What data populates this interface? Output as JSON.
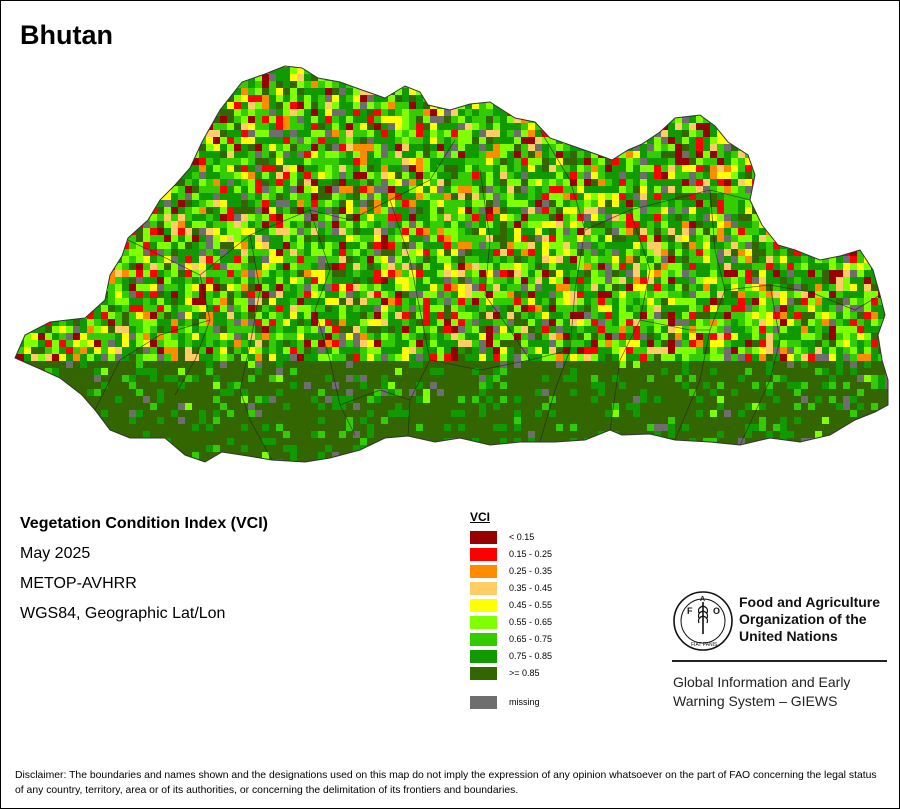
{
  "title": "Bhutan",
  "info": {
    "index_name": "Vegetation Condition Index (VCI)",
    "period": "May 2025",
    "sensor": "METOP-AVHRR",
    "projection": "WGS84, Geographic Lat/Lon"
  },
  "legend": {
    "title": "VCI",
    "classes": [
      {
        "label": "< 0.15",
        "color": "#990000"
      },
      {
        "label": "0.15 - 0.25",
        "color": "#ff0000"
      },
      {
        "label": "0.25 - 0.35",
        "color": "#ff8c00"
      },
      {
        "label": "0.35 - 0.45",
        "color": "#ffcc66"
      },
      {
        "label": "0.45 - 0.55",
        "color": "#ffff00"
      },
      {
        "label": "0.55 - 0.65",
        "color": "#80ff00"
      },
      {
        "label": "0.65 - 0.75",
        "color": "#33cc00"
      },
      {
        "label": "0.75 - 0.85",
        "color": "#119900"
      },
      {
        "label": ">= 0.85",
        "color": "#336600"
      }
    ],
    "missing": {
      "label": "missing",
      "color": "#6e6e6e"
    }
  },
  "organization": {
    "name_lines": [
      "Food and Agriculture",
      "Organization of the",
      "United Nations"
    ],
    "logo_text": "FAO",
    "logo_motto": "FIAT PANIS",
    "system_lines": [
      "Global Information and Early",
      "Warning System – GIEWS"
    ]
  },
  "disclaimer": "Disclaimer: The boundaries and names shown and the designations used on this map do not imply the expression of any opinion whatsoever on the part of FAO concerning the legal status of any country, territory, area or of its authorities, or concerning the delimitation of its frontiers and boundaries."
}
